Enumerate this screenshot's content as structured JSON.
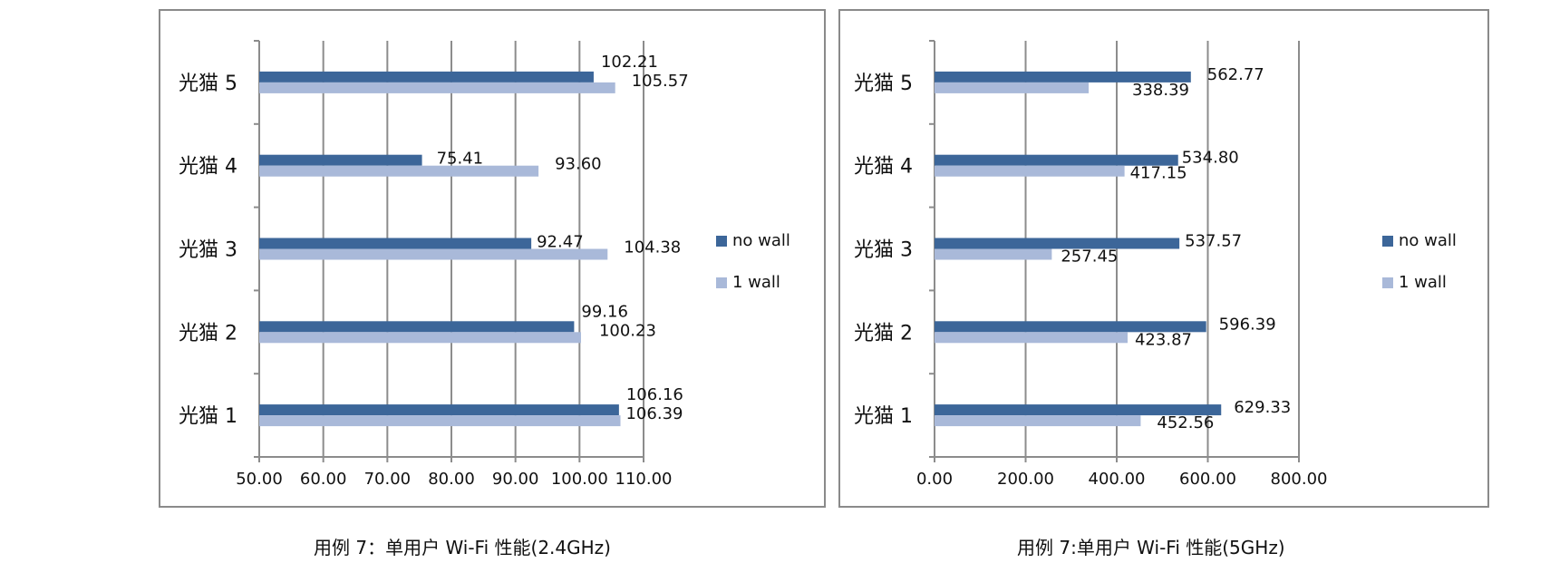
{
  "chart_data": [
    {
      "type": "bar",
      "orientation": "horizontal",
      "categories": [
        "光猫 1",
        "光猫 2",
        "光猫 3",
        "光猫 4",
        "光猫 5"
      ],
      "series": [
        {
          "name": "no wall",
          "values": [
            106.16,
            99.16,
            92.47,
            75.41,
            102.21
          ]
        },
        {
          "name": "1 wall",
          "values": [
            106.39,
            100.23,
            104.38,
            93.6,
            105.57
          ]
        }
      ],
      "xlim": [
        50,
        110
      ],
      "xticks": [
        "50.00",
        "60.00",
        "70.00",
        "80.00",
        "90.00",
        "100.00",
        "110.00"
      ],
      "legend": "right",
      "grid": true,
      "colors": {
        "no wall": "#3c6699",
        "1 wall": "#a9b9d9"
      }
    },
    {
      "type": "bar",
      "orientation": "horizontal",
      "categories": [
        "光猫 1",
        "光猫 2",
        "光猫 3",
        "光猫 4",
        "光猫 5"
      ],
      "series": [
        {
          "name": "no wall",
          "values": [
            629.33,
            596.39,
            537.57,
            534.8,
            562.77
          ]
        },
        {
          "name": "1 wall",
          "values": [
            452.56,
            423.87,
            257.45,
            417.15,
            338.39
          ]
        }
      ],
      "xlim": [
        0,
        800
      ],
      "xticks": [
        "0.00",
        "200.00",
        "400.00",
        "600.00",
        "800.00"
      ],
      "legend": "right",
      "grid": true,
      "colors": {
        "no wall": "#3c6699",
        "1 wall": "#a9b9d9"
      }
    }
  ],
  "captions": {
    "left": "用例 7：单用户 Wi-Fi 性能(2.4GHz)",
    "right": "用例 7:单用户 Wi-Fi 性能(5GHz)"
  }
}
